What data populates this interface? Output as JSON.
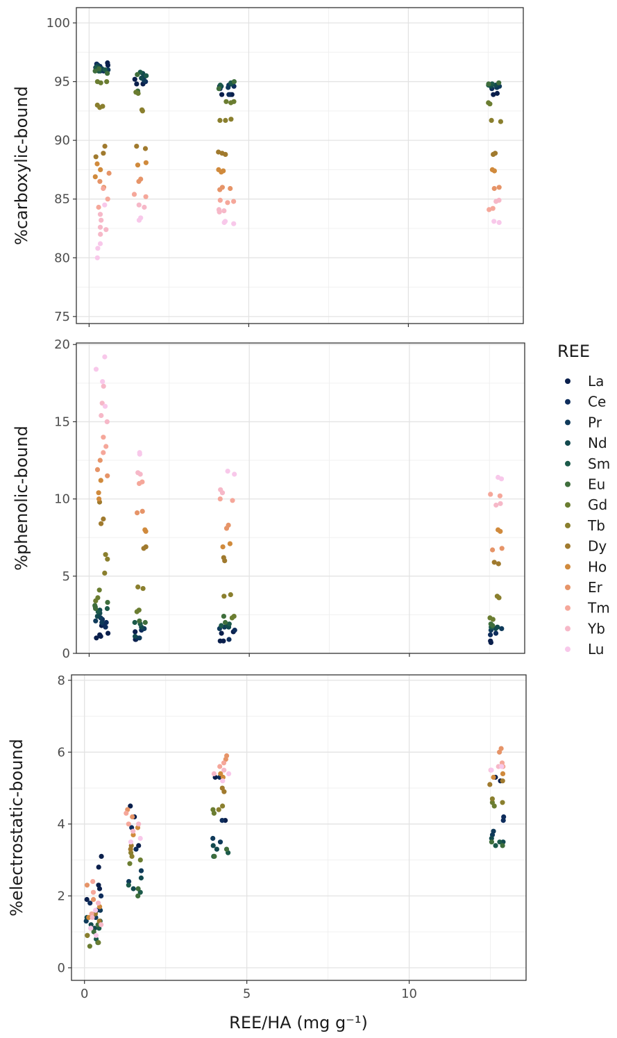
{
  "colors": {
    "La": "#0a1f4c",
    "Ce": "#0e2d5c",
    "Pr": "#0f3a5a",
    "Nd": "#12494e",
    "Sm": "#1c5a4a",
    "Eu": "#3f6e3c",
    "Gd": "#6b7d31",
    "Tb": "#8a7f2e",
    "Dy": "#a07a2e",
    "Ho": "#d08a3c",
    "Er": "#e69468",
    "Tm": "#f5a79a",
    "Yb": "#f6b8c8",
    "Lu": "#f8c8ea"
  },
  "chart_data": [
    {
      "type": "scatter",
      "ylabel": "%carboxylic-bound",
      "xlabel": "",
      "xlim": [
        -0.4,
        13.6
      ],
      "ylim": [
        74.4,
        101.3
      ],
      "yticks": [
        "75",
        "80",
        "85",
        "90",
        "95",
        "100"
      ],
      "grid": true,
      "groups": [
        {
          "x": 0.4,
          "jitter": 0.45,
          "values": {
            "La": [
              96.6,
              96.4,
              96.2,
              96.0,
              96.0
            ],
            "Ce": [
              96.5,
              96.3,
              96.1,
              95.9
            ],
            "Pr": [
              96.4,
              96.2,
              96.0,
              95.9
            ],
            "Nd": [
              96.3,
              96.1,
              95.9
            ],
            "Sm": [
              96.2,
              96.0,
              95.9
            ],
            "Eu": [
              96.1,
              95.9,
              95.7
            ],
            "Gd": [
              95.0,
              95.0,
              94.9
            ],
            "Tb": [
              93.0,
              92.9,
              92.8
            ],
            "Dy": [
              89.5,
              88.9,
              88.6
            ],
            "Ho": [
              88.0,
              87.5,
              86.9
            ],
            "Er": [
              87.2,
              86.5,
              86.0
            ],
            "Tm": [
              85.9,
              85.0,
              84.3
            ],
            "Yb": [
              83.7,
              83.2,
              82.6,
              82.4,
              82.0
            ],
            "Lu": [
              81.2,
              80.8,
              80.0,
              84.5
            ]
          }
        },
        {
          "x": 1.6,
          "jitter": 0.4,
          "values": {
            "La": [
              95.2,
              94.8,
              94.8
            ],
            "Ce": [
              95.4,
              95.0
            ],
            "Pr": [
              95.5,
              95.1
            ],
            "Nd": [
              95.7,
              95.3
            ],
            "Sm": [
              95.8,
              95.5
            ],
            "Eu": [
              95.6,
              94.2
            ],
            "Gd": [
              94.1,
              94.0
            ],
            "Tb": [
              92.6,
              92.5
            ],
            "Dy": [
              89.5,
              89.3
            ],
            "Ho": [
              88.1,
              87.9
            ],
            "Er": [
              86.7,
              86.5
            ],
            "Tm": [
              85.4,
              85.2
            ],
            "Yb": [
              84.5,
              84.3
            ],
            "Lu": [
              83.4,
              83.2
            ]
          }
        },
        {
          "x": 4.3,
          "jitter": 0.5,
          "values": {
            "La": [
              94.6,
              93.9,
              93.9,
              93.9
            ],
            "Ce": [
              94.6,
              94.4,
              93.9
            ],
            "Pr": [
              94.7,
              94.5
            ],
            "Nd": [
              94.8,
              94.6
            ],
            "Sm": [
              94.9,
              94.7
            ],
            "Eu": [
              95.0,
              94.4
            ],
            "Gd": [
              93.3,
              93.3,
              93.2
            ],
            "Tb": [
              91.8,
              91.7,
              91.7
            ],
            "Dy": [
              89.0,
              88.9,
              88.8
            ],
            "Ho": [
              87.5,
              87.4,
              87.3
            ],
            "Er": [
              86.0,
              85.9,
              85.8
            ],
            "Tm": [
              84.9,
              84.8,
              84.7
            ],
            "Yb": [
              84.1,
              84.0,
              83.9
            ],
            "Lu": [
              83.1,
              83.0,
              82.9
            ]
          }
        },
        {
          "x": 12.7,
          "jitter": 0.4,
          "values": {
            "La": [
              94.0,
              93.9
            ],
            "Ce": [
              94.5,
              94.4
            ],
            "Pr": [
              94.6,
              94.5
            ],
            "Nd": [
              94.7,
              94.6
            ],
            "Sm": [
              94.8,
              94.7
            ],
            "Eu": [
              94.9,
              94.8
            ],
            "Gd": [
              93.2,
              93.1
            ],
            "Tb": [
              91.7,
              91.6
            ],
            "Dy": [
              88.9,
              88.8
            ],
            "Ho": [
              87.5,
              87.4
            ],
            "Er": [
              86.0,
              85.9
            ],
            "Tm": [
              84.2,
              84.1
            ],
            "Yb": [
              84.9,
              84.8
            ],
            "Lu": [
              83.1,
              83.0
            ]
          }
        }
      ]
    },
    {
      "type": "scatter",
      "ylabel": "%phenolic-bound",
      "xlabel": "",
      "xlim": [
        -0.4,
        13.6
      ],
      "ylim": [
        0,
        20.1
      ],
      "yticks": [
        "0",
        "5",
        "10",
        "15",
        "20"
      ],
      "grid": true,
      "groups": [
        {
          "x": 0.4,
          "jitter": 0.45,
          "values": {
            "La": [
              1.3,
              1.2,
              1.1,
              1.0,
              1.8
            ],
            "Ce": [
              2.2,
              2.0,
              1.9,
              1.7
            ],
            "Pr": [
              2.3,
              2.1,
              2.0
            ],
            "Nd": [
              2.8,
              2.6,
              2.4
            ],
            "Sm": [
              3.0,
              2.9,
              2.7
            ],
            "Eu": [
              3.3,
              3.1,
              2.9
            ],
            "Gd": [
              4.1,
              3.6,
              3.4
            ],
            "Tb": [
              6.4,
              6.1,
              5.2
            ],
            "Dy": [
              8.7,
              8.4,
              9.8
            ],
            "Ho": [
              10.4,
              10.0,
              11.2
            ],
            "Er": [
              11.9,
              11.5,
              12.5
            ],
            "Tm": [
              13.4,
              13.0,
              14.0
            ],
            "Yb": [
              15.4,
              15.0,
              16.2,
              17.3
            ],
            "Lu": [
              18.4,
              17.6,
              19.2,
              16.0
            ]
          }
        },
        {
          "x": 1.6,
          "jitter": 0.4,
          "values": {
            "La": [
              1.4,
              0.9,
              0.9
            ],
            "Ce": [
              1.5,
              1.0
            ],
            "Pr": [
              1.6,
              1.0
            ],
            "Nd": [
              1.7,
              1.1
            ],
            "Sm": [
              2.0,
              1.9
            ],
            "Eu": [
              2.1,
              2.0
            ],
            "Gd": [
              2.8,
              2.7
            ],
            "Tb": [
              4.3,
              4.2
            ],
            "Dy": [
              6.9,
              6.8
            ],
            "Ho": [
              8.0,
              7.9
            ],
            "Er": [
              9.2,
              9.1
            ],
            "Tm": [
              11.1,
              11.0
            ],
            "Yb": [
              11.7,
              11.6
            ],
            "Lu": [
              13.0,
              12.9
            ]
          }
        },
        {
          "x": 4.3,
          "jitter": 0.5,
          "values": {
            "La": [
              1.4,
              1.3,
              0.8,
              0.8
            ],
            "Ce": [
              1.5,
              0.9
            ],
            "Pr": [
              1.6,
              1.7
            ],
            "Nd": [
              1.8,
              1.7
            ],
            "Sm": [
              1.9,
              1.8
            ],
            "Eu": [
              2.0,
              2.4
            ],
            "Gd": [
              2.4,
              2.3
            ],
            "Tb": [
              3.8,
              3.7
            ],
            "Dy": [
              6.2,
              6.0
            ],
            "Ho": [
              7.1,
              6.9
            ],
            "Er": [
              8.3,
              8.1
            ],
            "Tm": [
              10.0,
              9.9
            ],
            "Yb": [
              10.6,
              10.4
            ],
            "Lu": [
              11.8,
              11.6
            ]
          }
        },
        {
          "x": 12.7,
          "jitter": 0.4,
          "values": {
            "La": [
              0.8,
              0.7
            ],
            "Ce": [
              1.3,
              1.2
            ],
            "Pr": [
              1.6,
              1.5
            ],
            "Nd": [
              1.7,
              1.6
            ],
            "Sm": [
              1.8,
              1.7
            ],
            "Eu": [
              1.9,
              1.8
            ],
            "Gd": [
              2.3,
              2.2
            ],
            "Tb": [
              3.7,
              3.6
            ],
            "Dy": [
              5.9,
              5.8
            ],
            "Ho": [
              8.0,
              7.9
            ],
            "Er": [
              6.8,
              6.7
            ],
            "Tm": [
              10.3,
              10.2
            ],
            "Yb": [
              9.7,
              9.6
            ],
            "Lu": [
              11.4,
              11.3
            ]
          }
        }
      ]
    },
    {
      "type": "scatter",
      "ylabel": "%electrostatic-bound",
      "xlabel": "REE/HA (mg g⁻¹)",
      "xlim": [
        -0.4,
        13.6
      ],
      "ylim": [
        -0.35,
        8.15
      ],
      "xticks": [
        "0",
        "5",
        "10"
      ],
      "yticks": [
        "0",
        "2",
        "4",
        "6",
        "8"
      ],
      "grid": true,
      "groups": [
        {
          "x": 0.3,
          "jitter": 0.5,
          "values": {
            "La": [
              3.1,
              2.8,
              2.3,
              2.2,
              1.9
            ],
            "Ce": [
              2.0,
              1.8,
              1.6
            ],
            "Pr": [
              1.6,
              1.4,
              1.3
            ],
            "Nd": [
              1.4,
              1.2,
              1.1
            ],
            "Sm": [
              1.3,
              1.1,
              0.8
            ],
            "Eu": [
              1.2,
              1.0,
              0.7
            ],
            "Gd": [
              0.9,
              0.7,
              0.6
            ],
            "Tb": [
              1.1,
              0.9
            ],
            "Dy": [
              1.5,
              1.3
            ],
            "Ho": [
              1.7,
              1.4
            ],
            "Er": [
              2.3,
              1.9
            ],
            "Tm": [
              2.4,
              2.1,
              1.5
            ],
            "Yb": [
              1.8,
              1.4,
              1.2
            ],
            "Lu": [
              1.6,
              1.1,
              0.9
            ]
          }
        },
        {
          "x": 1.5,
          "jitter": 0.5,
          "values": {
            "La": [
              4.5,
              4.2,
              3.4
            ],
            "Ce": [
              3.9,
              3.3
            ],
            "Pr": [
              2.7,
              2.4
            ],
            "Nd": [
              2.5,
              2.2
            ],
            "Sm": [
              2.3,
              2.1
            ],
            "Eu": [
              2.2,
              2.0
            ],
            "Gd": [
              3.0,
              2.9
            ],
            "Tb": [
              3.2,
              3.1
            ],
            "Dy": [
              3.4,
              3.3
            ],
            "Ho": [
              3.9,
              3.7
            ],
            "Er": [
              4.4,
              4.2
            ],
            "Tm": [
              4.3,
              4.0
            ],
            "Yb": [
              4.0,
              3.8
            ],
            "Lu": [
              3.6,
              3.5
            ]
          }
        },
        {
          "x": 4.2,
          "jitter": 0.55,
          "values": {
            "La": [
              5.3,
              4.1
            ],
            "Ce": [
              5.3,
              4.1
            ],
            "Pr": [
              3.6,
              3.5
            ],
            "Nd": [
              3.4,
              3.3
            ],
            "Sm": [
              3.2,
              3.1
            ],
            "Eu": [
              3.3,
              3.1
            ],
            "Gd": [
              4.4,
              4.3
            ],
            "Tb": [
              4.5,
              4.4
            ],
            "Dy": [
              5.0,
              4.9
            ],
            "Ho": [
              5.4,
              5.3
            ],
            "Er": [
              5.9,
              5.8
            ],
            "Tm": [
              5.7,
              5.6
            ],
            "Yb": [
              5.5,
              5.4
            ],
            "Lu": [
              5.4,
              5.2
            ]
          }
        },
        {
          "x": 12.7,
          "jitter": 0.45,
          "values": {
            "La": [
              5.3,
              5.2
            ],
            "Ce": [
              4.2,
              4.1
            ],
            "Pr": [
              3.8,
              3.7
            ],
            "Nd": [
              3.6,
              3.5
            ],
            "Sm": [
              3.5,
              3.4
            ],
            "Eu": [
              3.5,
              3.4
            ],
            "Gd": [
              4.6,
              4.5
            ],
            "Tb": [
              4.7,
              4.6
            ],
            "Dy": [
              5.2,
              5.1
            ],
            "Ho": [
              5.4,
              5.3
            ],
            "Er": [
              6.1,
              6.0
            ],
            "Tm": [
              5.7,
              5.6
            ],
            "Yb": [
              5.6,
              5.5
            ],
            "Lu": [
              5.6,
              5.5
            ]
          }
        }
      ]
    }
  ],
  "legend": {
    "title": "REE",
    "items": [
      "La",
      "Ce",
      "Pr",
      "Nd",
      "Sm",
      "Eu",
      "Gd",
      "Tb",
      "Dy",
      "Ho",
      "Er",
      "Tm",
      "Yb",
      "Lu"
    ]
  }
}
